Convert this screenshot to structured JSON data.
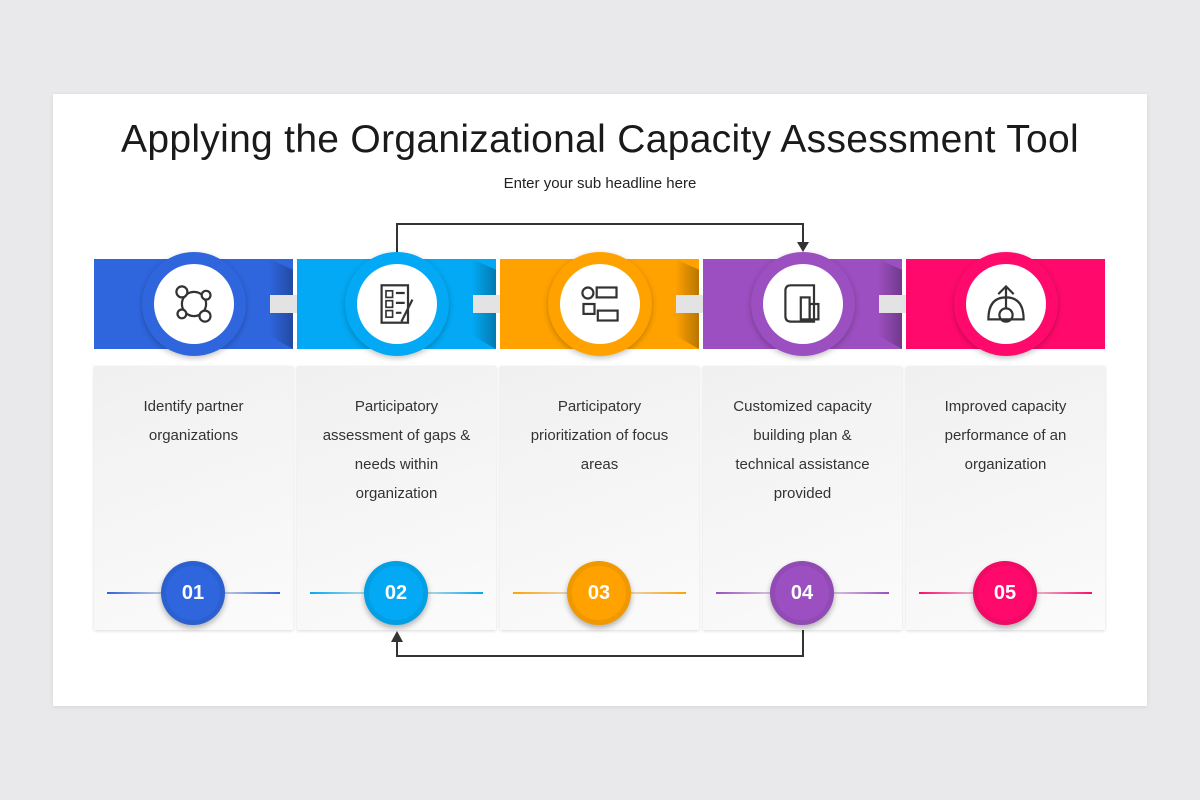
{
  "title": "Applying the Organizational Capacity Assessment Tool",
  "subtitle": "Enter your sub headline here",
  "steps": [
    {
      "number": "01",
      "text": "Identify partner organizations",
      "color": "#2f66de",
      "icon": "partner-network-icon"
    },
    {
      "number": "02",
      "text": "Participatory assessment of gaps & needs within organization",
      "color": "#03a9f4",
      "icon": "checklist-icon"
    },
    {
      "number": "03",
      "text": "Participatory prioritization of focus areas",
      "color": "#ffa200",
      "icon": "priority-list-icon"
    },
    {
      "number": "04",
      "text": "Customized capacity building plan & technical assistance provided",
      "color": "#9c4fc0",
      "icon": "blueprint-building-icon"
    },
    {
      "number": "05",
      "text": "Improved capacity performance of an organization",
      "color": "#ff0a6c",
      "icon": "growth-gear-icon"
    }
  ]
}
